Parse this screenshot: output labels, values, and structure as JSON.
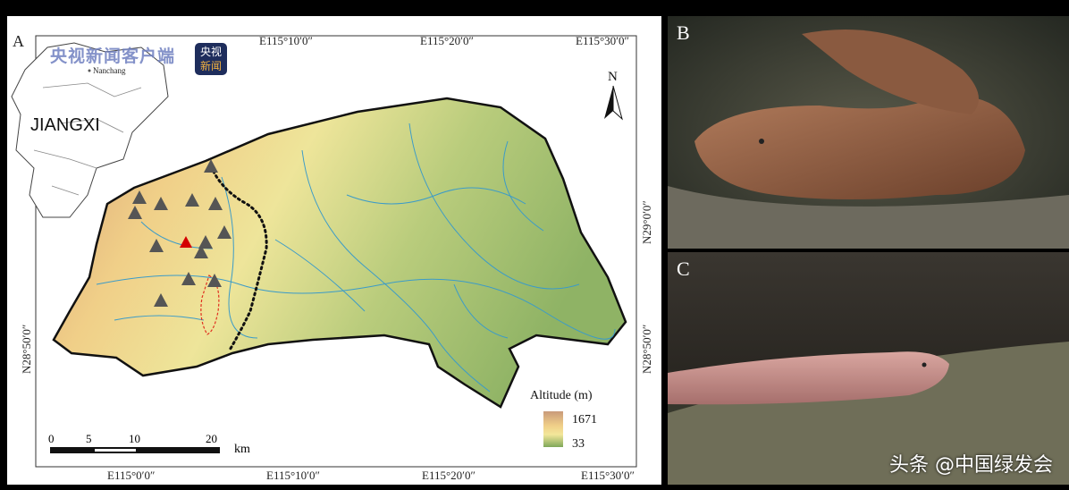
{
  "figure": {
    "panel_a": {
      "label": "A",
      "inset": {
        "province": "JIANGXI",
        "city": "Nanchang"
      },
      "top_ticks": [
        "E115°10′0″",
        "E115°20′0″",
        "E115°30′0″"
      ],
      "bottom_ticks": [
        "E115°0′0″",
        "E115°10′0″",
        "E115°20′0″",
        "E115°30′0″"
      ],
      "left_ticks": [
        "N28°50′0″"
      ],
      "right_ticks": [
        "N29°0′0″",
        "N28°50′0″"
      ],
      "north_arrow": "N",
      "legend": {
        "title": "Altitude (m)",
        "max": "1671",
        "min": "33",
        "high_color": "#c99a7a",
        "mid_color": "#f3e79a",
        "low_color": "#7fa85a"
      },
      "scale_bar": {
        "ticks": [
          "0",
          "5",
          "10",
          "20"
        ],
        "unit": "km"
      },
      "marker_colors": {
        "site": "#555555",
        "highlight": "#d40000",
        "boundary_line": "#000000",
        "river": "#3b9bc8",
        "range": "#e03020"
      }
    },
    "panel_b": {
      "label": "B"
    },
    "panel_c": {
      "label": "C"
    },
    "watermark_logo": "央视新闻客户端",
    "watermark_badge": [
      "央视",
      "新闻"
    ],
    "watermark_credit": "头条 @中国绿发会"
  }
}
